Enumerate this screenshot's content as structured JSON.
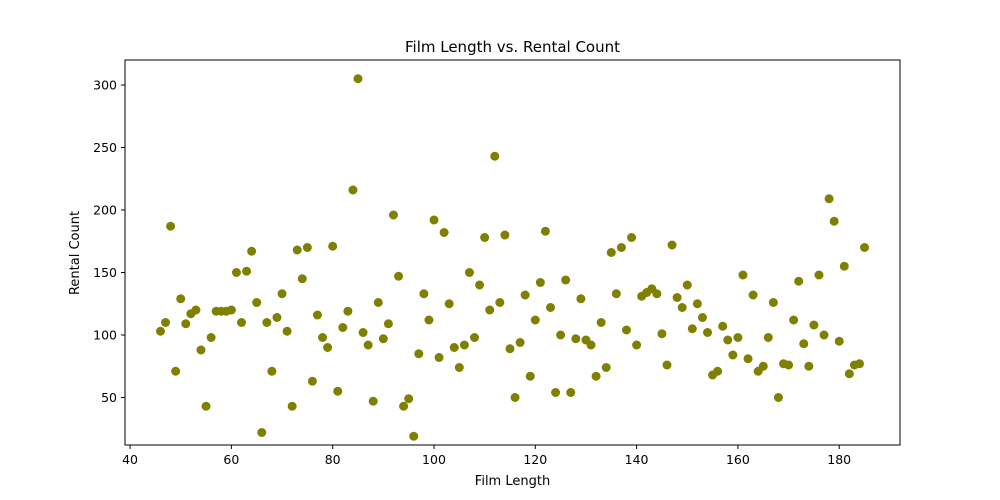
{
  "chart_data": {
    "type": "scatter",
    "title": "Film Length vs. Rental Count",
    "xlabel": "Film Length",
    "ylabel": "Rental Count",
    "xlim": [
      39,
      192
    ],
    "ylim": [
      12,
      320
    ],
    "xticks": [
      40,
      60,
      80,
      100,
      120,
      140,
      160,
      180
    ],
    "yticks": [
      50,
      100,
      150,
      200,
      250,
      300
    ],
    "grid": false,
    "marker_color": "#808000",
    "series": [
      {
        "points": [
          [
            46,
            103
          ],
          [
            47,
            110
          ],
          [
            48,
            187
          ],
          [
            49,
            71
          ],
          [
            50,
            129
          ],
          [
            51,
            109
          ],
          [
            52,
            117
          ],
          [
            53,
            120
          ],
          [
            54,
            88
          ],
          [
            55,
            43
          ],
          [
            56,
            98
          ],
          [
            57,
            119
          ],
          [
            58,
            119
          ],
          [
            59,
            119
          ],
          [
            60,
            120
          ],
          [
            61,
            150
          ],
          [
            62,
            110
          ],
          [
            63,
            151
          ],
          [
            64,
            167
          ],
          [
            65,
            126
          ],
          [
            66,
            22
          ],
          [
            67,
            110
          ],
          [
            68,
            71
          ],
          [
            69,
            114
          ],
          [
            70,
            133
          ],
          [
            71,
            103
          ],
          [
            72,
            43
          ],
          [
            73,
            168
          ],
          [
            74,
            145
          ],
          [
            75,
            170
          ],
          [
            76,
            63
          ],
          [
            77,
            116
          ],
          [
            78,
            98
          ],
          [
            79,
            90
          ],
          [
            80,
            171
          ],
          [
            81,
            55
          ],
          [
            82,
            106
          ],
          [
            83,
            119
          ],
          [
            84,
            216
          ],
          [
            85,
            305
          ],
          [
            86,
            102
          ],
          [
            87,
            92
          ],
          [
            88,
            47
          ],
          [
            89,
            126
          ],
          [
            90,
            97
          ],
          [
            91,
            109
          ],
          [
            92,
            196
          ],
          [
            93,
            147
          ],
          [
            94,
            43
          ],
          [
            95,
            49
          ],
          [
            96,
            19
          ],
          [
            97,
            85
          ],
          [
            98,
            133
          ],
          [
            99,
            112
          ],
          [
            100,
            192
          ],
          [
            101,
            82
          ],
          [
            102,
            182
          ],
          [
            103,
            125
          ],
          [
            104,
            90
          ],
          [
            105,
            74
          ],
          [
            106,
            92
          ],
          [
            107,
            150
          ],
          [
            108,
            98
          ],
          [
            109,
            140
          ],
          [
            110,
            178
          ],
          [
            111,
            120
          ],
          [
            112,
            243
          ],
          [
            113,
            126
          ],
          [
            114,
            180
          ],
          [
            115,
            89
          ],
          [
            116,
            50
          ],
          [
            117,
            94
          ],
          [
            118,
            132
          ],
          [
            119,
            67
          ],
          [
            120,
            112
          ],
          [
            121,
            142
          ],
          [
            122,
            183
          ],
          [
            123,
            122
          ],
          [
            124,
            54
          ],
          [
            125,
            100
          ],
          [
            126,
            144
          ],
          [
            127,
            54
          ],
          [
            128,
            97
          ],
          [
            129,
            129
          ],
          [
            130,
            96
          ],
          [
            131,
            92
          ],
          [
            132,
            67
          ],
          [
            133,
            110
          ],
          [
            134,
            74
          ],
          [
            135,
            166
          ],
          [
            136,
            133
          ],
          [
            137,
            170
          ],
          [
            138,
            104
          ],
          [
            139,
            178
          ],
          [
            140,
            92
          ],
          [
            141,
            131
          ],
          [
            142,
            134
          ],
          [
            143,
            137
          ],
          [
            144,
            133
          ],
          [
            145,
            101
          ],
          [
            146,
            76
          ],
          [
            147,
            172
          ],
          [
            148,
            130
          ],
          [
            149,
            122
          ],
          [
            150,
            140
          ],
          [
            151,
            105
          ],
          [
            152,
            125
          ],
          [
            153,
            114
          ],
          [
            154,
            102
          ],
          [
            155,
            68
          ],
          [
            156,
            71
          ],
          [
            157,
            107
          ],
          [
            158,
            96
          ],
          [
            159,
            84
          ],
          [
            160,
            98
          ],
          [
            161,
            148
          ],
          [
            162,
            81
          ],
          [
            163,
            132
          ],
          [
            164,
            71
          ],
          [
            165,
            75
          ],
          [
            166,
            98
          ],
          [
            167,
            126
          ],
          [
            168,
            50
          ],
          [
            169,
            77
          ],
          [
            170,
            76
          ],
          [
            171,
            112
          ],
          [
            172,
            143
          ],
          [
            173,
            93
          ],
          [
            174,
            75
          ],
          [
            175,
            108
          ],
          [
            176,
            148
          ],
          [
            177,
            100
          ],
          [
            178,
            209
          ],
          [
            179,
            191
          ],
          [
            180,
            95
          ],
          [
            181,
            155
          ],
          [
            182,
            69
          ],
          [
            183,
            76
          ],
          [
            184,
            77
          ],
          [
            185,
            170
          ]
        ]
      }
    ]
  }
}
